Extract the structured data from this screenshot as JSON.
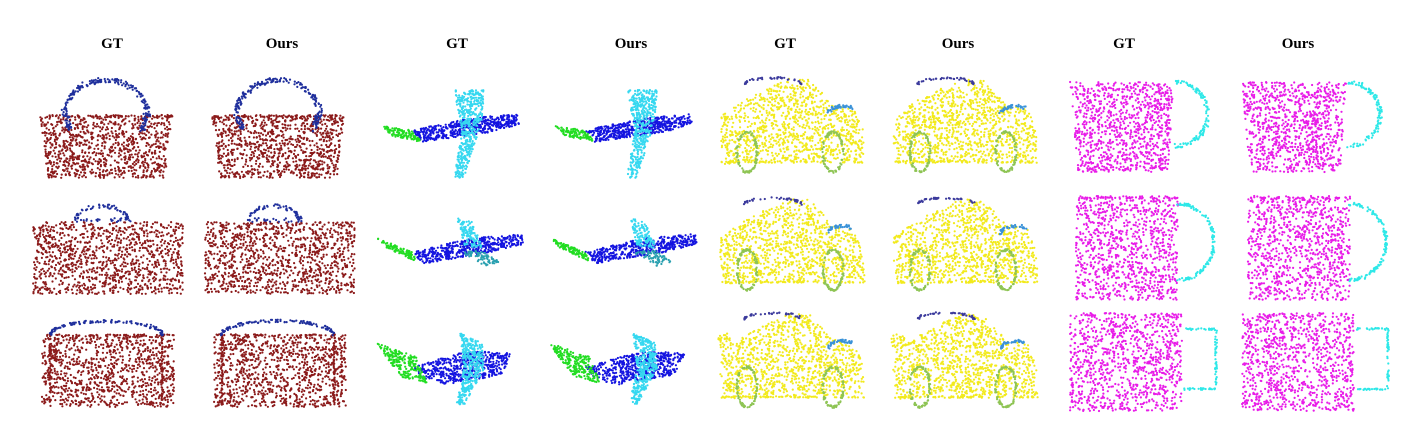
{
  "headers": [
    "GT",
    "Ours",
    "GT",
    "Ours",
    "GT",
    "Ours",
    "GT",
    "Ours"
  ],
  "objects": [
    {
      "category": "bag",
      "columns": [
        0,
        1
      ],
      "part_colors": {
        "body": "#8b1a1a",
        "handle": "#1f2f9c"
      }
    },
    {
      "category": "airplane",
      "columns": [
        2,
        3
      ],
      "part_colors": {
        "fuselage": "#1414e0",
        "wing": "#36d8f0",
        "tail": "#22dd22",
        "stabilizer": "#2aa0b0"
      }
    },
    {
      "category": "car",
      "columns": [
        4,
        5
      ],
      "part_colors": {
        "body": "#f2ea1c",
        "wheel": "#8ec454",
        "roof": "#3b3a9c",
        "window": "#3a92d8"
      }
    },
    {
      "category": "mug",
      "columns": [
        6,
        7
      ],
      "part_colors": {
        "body": "#e81ce8",
        "handle": "#2ee8e8"
      }
    }
  ],
  "rows": 3
}
